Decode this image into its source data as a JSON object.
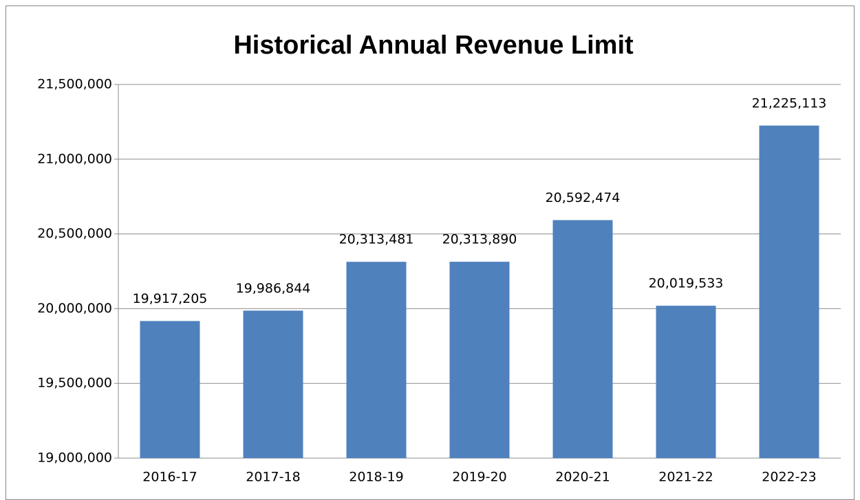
{
  "chart_data": {
    "type": "bar",
    "title": "Historical Annual Revenue Limit",
    "categories": [
      "2016-17",
      "2017-18",
      "2018-19",
      "2019-20",
      "2020-21",
      "2021-22",
      "2022-23"
    ],
    "values": [
      19917205,
      19986844,
      20313481,
      20313890,
      20592474,
      20019533,
      21225113
    ],
    "value_labels": [
      "19,917,205",
      "19,986,844",
      "20,313,481",
      "20,313,890",
      "20,592,474",
      "20,019,533",
      "21,225,113"
    ],
    "color": "#4f81bd",
    "ylim": [
      19000000,
      21500000
    ],
    "yticks": [
      {
        "value": 19000000,
        "label": "19,000,000"
      },
      {
        "value": 19500000,
        "label": "19,500,000"
      },
      {
        "value": 20000000,
        "label": "20,000,000"
      },
      {
        "value": 20500000,
        "label": "20,500,000"
      },
      {
        "value": 21000000,
        "label": "21,000,000"
      },
      {
        "value": 21500000,
        "label": "21,500,000"
      }
    ],
    "grid": true
  }
}
